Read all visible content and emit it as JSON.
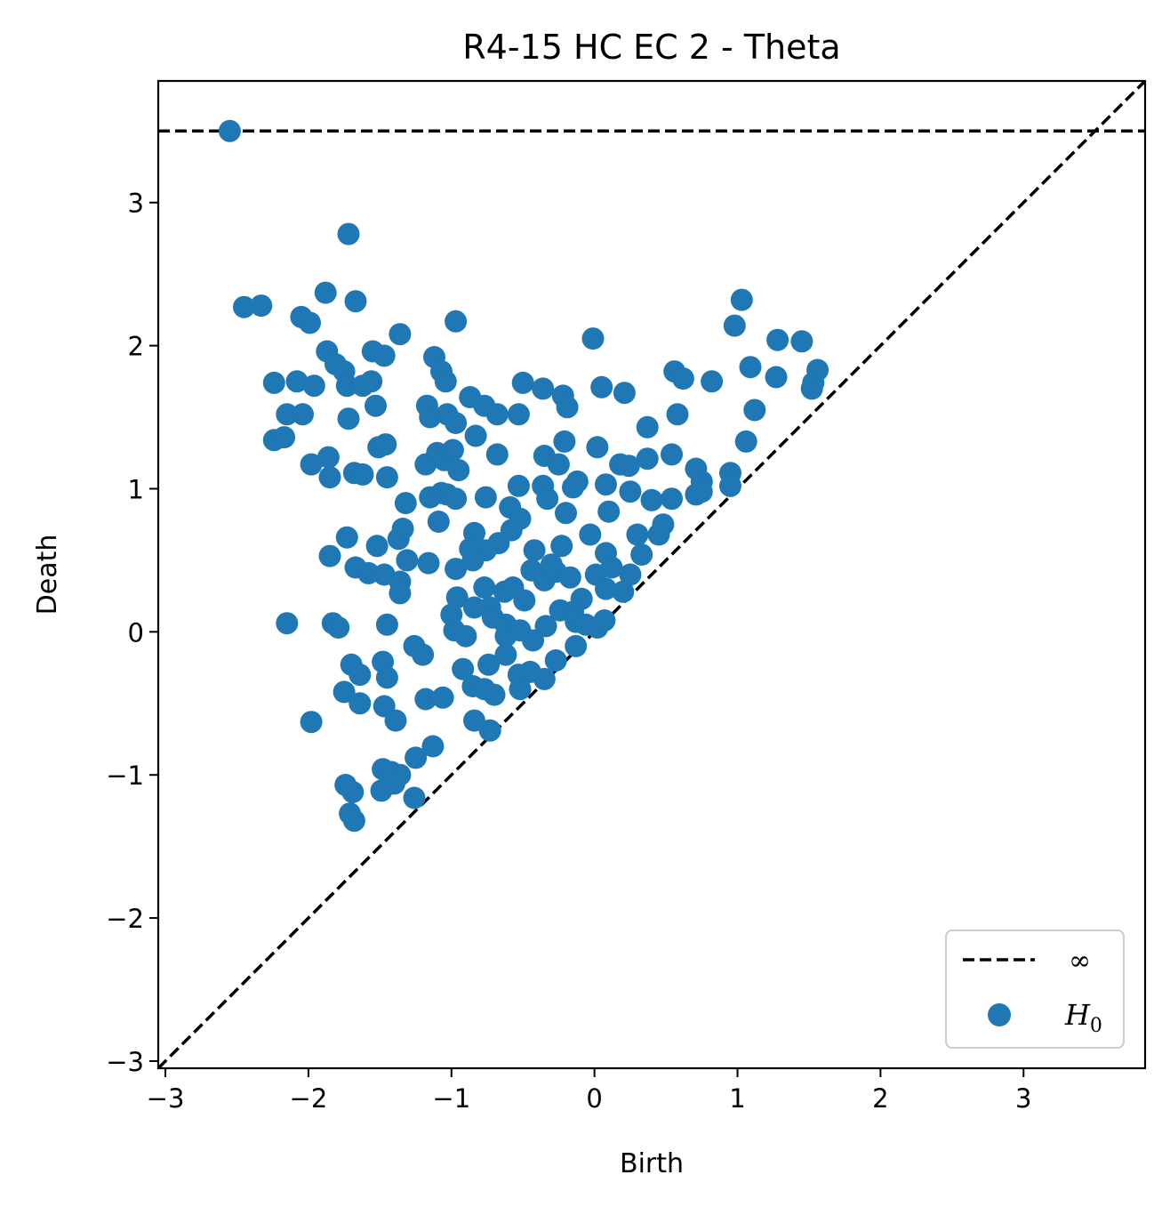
{
  "chart_data": {
    "type": "scatter",
    "title": "R4-15 HC EC 2 - Theta",
    "xlabel": "Birth",
    "ylabel": "Death",
    "xlim": [
      -3.05,
      3.85
    ],
    "ylim": [
      -3.05,
      3.85
    ],
    "x_ticks": [
      -3,
      -2,
      -1,
      0,
      1,
      2,
      3
    ],
    "y_ticks": [
      -3,
      -2,
      -1,
      0,
      1,
      2,
      3
    ],
    "x_tick_labels": [
      "−3",
      "−2",
      "−1",
      "0",
      "1",
      "2",
      "3"
    ],
    "y_tick_labels": [
      "−3",
      "−2",
      "−1",
      "0",
      "1",
      "2",
      "3"
    ],
    "grid": false,
    "legend_position": "lower-right",
    "infinity_level": 3.5,
    "colors": {
      "points": "#1f77b4",
      "lines": "#000000"
    },
    "legend": [
      {
        "label": "∞",
        "marker": "dashed-line"
      },
      {
        "label": "H",
        "subscript": "0",
        "marker": "dot"
      }
    ],
    "series": [
      {
        "name": "H0",
        "points": [
          [
            -2.55,
            3.5
          ],
          [
            -1.72,
            2.78
          ],
          [
            -2.45,
            2.27
          ],
          [
            -2.33,
            2.28
          ],
          [
            -1.88,
            2.37
          ],
          [
            -1.67,
            2.31
          ],
          [
            -2.05,
            2.2
          ],
          [
            -1.99,
            2.16
          ],
          [
            -0.97,
            2.17
          ],
          [
            -0.01,
            2.05
          ],
          [
            -1.36,
            2.08
          ],
          [
            -1.55,
            1.96
          ],
          [
            -1.87,
            1.96
          ],
          [
            -1.47,
            1.93
          ],
          [
            -1.81,
            1.87
          ],
          [
            -1.75,
            1.82
          ],
          [
            -1.12,
            1.92
          ],
          [
            -1.07,
            1.82
          ],
          [
            -2.24,
            1.74
          ],
          [
            -2.08,
            1.75
          ],
          [
            -1.96,
            1.72
          ],
          [
            -1.73,
            1.72
          ],
          [
            -1.62,
            1.72
          ],
          [
            -1.56,
            1.75
          ],
          [
            -1.53,
            1.58
          ],
          [
            -1.04,
            1.75
          ],
          [
            -0.5,
            1.74
          ],
          [
            -0.36,
            1.7
          ],
          [
            -0.22,
            1.65
          ],
          [
            -0.19,
            1.57
          ],
          [
            0.05,
            1.71
          ],
          [
            0.21,
            1.67
          ],
          [
            0.56,
            1.82
          ],
          [
            0.62,
            1.77
          ],
          [
            0.82,
            1.75
          ],
          [
            1.03,
            2.32
          ],
          [
            0.98,
            2.14
          ],
          [
            1.28,
            2.04
          ],
          [
            1.45,
            2.03
          ],
          [
            1.09,
            1.85
          ],
          [
            1.27,
            1.78
          ],
          [
            1.56,
            1.83
          ],
          [
            1.53,
            1.74
          ],
          [
            1.52,
            1.7
          ],
          [
            1.12,
            1.55
          ],
          [
            0.58,
            1.52
          ],
          [
            -2.15,
            1.52
          ],
          [
            -2.04,
            1.52
          ],
          [
            -1.72,
            1.49
          ],
          [
            -1.17,
            1.58
          ],
          [
            -1.15,
            1.5
          ],
          [
            -1.03,
            1.52
          ],
          [
            -0.97,
            1.46
          ],
          [
            -0.87,
            1.64
          ],
          [
            -0.77,
            1.58
          ],
          [
            -0.68,
            1.52
          ],
          [
            -0.53,
            1.52
          ],
          [
            -2.24,
            1.34
          ],
          [
            -2.17,
            1.36
          ],
          [
            -1.86,
            1.22
          ],
          [
            -1.98,
            1.17
          ],
          [
            -1.51,
            1.29
          ],
          [
            -1.46,
            1.31
          ],
          [
            -1.18,
            1.17
          ],
          [
            -1.1,
            1.25
          ],
          [
            -1.05,
            1.2
          ],
          [
            -0.99,
            1.27
          ],
          [
            -0.95,
            1.13
          ],
          [
            -0.83,
            1.37
          ],
          [
            -0.68,
            1.24
          ],
          [
            -0.35,
            1.23
          ],
          [
            -0.21,
            1.33
          ],
          [
            -0.25,
            1.17
          ],
          [
            0.02,
            1.29
          ],
          [
            0.18,
            1.17
          ],
          [
            0.24,
            1.16
          ],
          [
            0.37,
            1.43
          ],
          [
            0.54,
            1.24
          ],
          [
            0.37,
            1.21
          ],
          [
            0.71,
            1.14
          ],
          [
            0.75,
            1.05
          ],
          [
            0.95,
            1.11
          ],
          [
            1.06,
            1.33
          ],
          [
            -1.85,
            1.08
          ],
          [
            -1.68,
            1.11
          ],
          [
            -1.62,
            1.1
          ],
          [
            -1.45,
            1.08
          ],
          [
            -1.32,
            0.9
          ],
          [
            -1.15,
            0.94
          ],
          [
            -1.07,
            0.97
          ],
          [
            -1.03,
            0.96
          ],
          [
            -0.97,
            0.93
          ],
          [
            -0.76,
            0.94
          ],
          [
            -0.59,
            0.87
          ],
          [
            -0.53,
            1.02
          ],
          [
            -0.36,
            1.02
          ],
          [
            -0.33,
            0.93
          ],
          [
            -0.15,
            1.01
          ],
          [
            -0.12,
            1.05
          ],
          [
            0.08,
            1.03
          ],
          [
            0.25,
            0.98
          ],
          [
            0.4,
            0.92
          ],
          [
            0.54,
            0.93
          ],
          [
            0.71,
            0.96
          ],
          [
            0.75,
            0.98
          ],
          [
            0.95,
            1.02
          ],
          [
            -1.73,
            0.66
          ],
          [
            -1.85,
            0.53
          ],
          [
            -1.52,
            0.6
          ],
          [
            -1.37,
            0.65
          ],
          [
            -1.34,
            0.72
          ],
          [
            -1.09,
            0.77
          ],
          [
            -0.84,
            0.69
          ],
          [
            -0.76,
            0.57
          ],
          [
            -0.67,
            0.62
          ],
          [
            -0.58,
            0.71
          ],
          [
            -0.52,
            0.79
          ],
          [
            -0.42,
            0.57
          ],
          [
            -0.23,
            0.6
          ],
          [
            -0.2,
            0.83
          ],
          [
            -0.03,
            0.68
          ],
          [
            0.1,
            0.84
          ],
          [
            0.08,
            0.55
          ],
          [
            0.3,
            0.68
          ],
          [
            0.33,
            0.54
          ],
          [
            0.45,
            0.68
          ],
          [
            0.48,
            0.75
          ],
          [
            -1.67,
            0.45
          ],
          [
            -1.58,
            0.41
          ],
          [
            -1.47,
            0.4
          ],
          [
            -1.36,
            0.35
          ],
          [
            -1.36,
            0.27
          ],
          [
            -1.31,
            0.5
          ],
          [
            -1.16,
            0.48
          ],
          [
            -0.97,
            0.44
          ],
          [
            -0.96,
            0.24
          ],
          [
            -0.87,
            0.58
          ],
          [
            -0.85,
            0.5
          ],
          [
            -0.77,
            0.31
          ],
          [
            -0.73,
            0.17
          ],
          [
            -0.63,
            0.28
          ],
          [
            -0.57,
            0.31
          ],
          [
            -0.49,
            0.22
          ],
          [
            -0.44,
            0.43
          ],
          [
            -0.35,
            0.36
          ],
          [
            -0.3,
            0.47
          ],
          [
            -0.27,
            0.42
          ],
          [
            -0.17,
            0.38
          ],
          [
            -0.09,
            0.23
          ],
          [
            0.01,
            0.4
          ],
          [
            0.08,
            0.3
          ],
          [
            0.12,
            0.45
          ],
          [
            0.2,
            0.28
          ],
          [
            0.25,
            0.4
          ],
          [
            -2.15,
            0.06
          ],
          [
            -1.83,
            0.06
          ],
          [
            -1.79,
            0.03
          ],
          [
            -1.45,
            0.05
          ],
          [
            -1.0,
            0.12
          ],
          [
            -0.98,
            0.01
          ],
          [
            -0.9,
            -0.03
          ],
          [
            -0.84,
            0.17
          ],
          [
            -0.71,
            0.1
          ],
          [
            -0.62,
            0.05
          ],
          [
            -0.62,
            -0.03
          ],
          [
            -0.52,
            0.01
          ],
          [
            -0.43,
            -0.06
          ],
          [
            -0.34,
            0.04
          ],
          [
            -0.24,
            0.15
          ],
          [
            -0.15,
            0.14
          ],
          [
            -0.13,
            0.07
          ],
          [
            -0.06,
            0.05
          ],
          [
            0.02,
            0.03
          ],
          [
            0.07,
            0.08
          ],
          [
            -1.7,
            -0.23
          ],
          [
            -1.64,
            -0.3
          ],
          [
            -1.48,
            -0.21
          ],
          [
            -1.45,
            -0.32
          ],
          [
            -1.26,
            -0.1
          ],
          [
            -1.2,
            -0.16
          ],
          [
            -0.92,
            -0.26
          ],
          [
            -0.74,
            -0.23
          ],
          [
            -0.62,
            -0.16
          ],
          [
            -0.53,
            -0.3
          ],
          [
            -0.45,
            -0.28
          ],
          [
            -0.35,
            -0.33
          ],
          [
            -0.27,
            -0.2
          ],
          [
            -0.13,
            -0.1
          ],
          [
            -1.75,
            -0.42
          ],
          [
            -1.64,
            -0.5
          ],
          [
            -1.47,
            -0.52
          ],
          [
            -1.39,
            -0.62
          ],
          [
            -1.18,
            -0.47
          ],
          [
            -1.06,
            -0.46
          ],
          [
            -0.85,
            -0.38
          ],
          [
            -0.77,
            -0.4
          ],
          [
            -0.7,
            -0.44
          ],
          [
            -0.52,
            -0.4
          ],
          [
            -1.98,
            -0.63
          ],
          [
            -0.84,
            -0.62
          ],
          [
            -0.73,
            -0.69
          ],
          [
            -1.13,
            -0.8
          ],
          [
            -1.48,
            -0.96
          ],
          [
            -1.42,
            -0.98
          ],
          [
            -1.36,
            -1.0
          ],
          [
            -1.25,
            -0.88
          ],
          [
            -1.74,
            -1.07
          ],
          [
            -1.69,
            -1.12
          ],
          [
            -1.49,
            -1.11
          ],
          [
            -1.4,
            -1.06
          ],
          [
            -1.26,
            -1.16
          ],
          [
            -1.71,
            -1.27
          ],
          [
            -1.68,
            -1.32
          ]
        ]
      }
    ]
  }
}
